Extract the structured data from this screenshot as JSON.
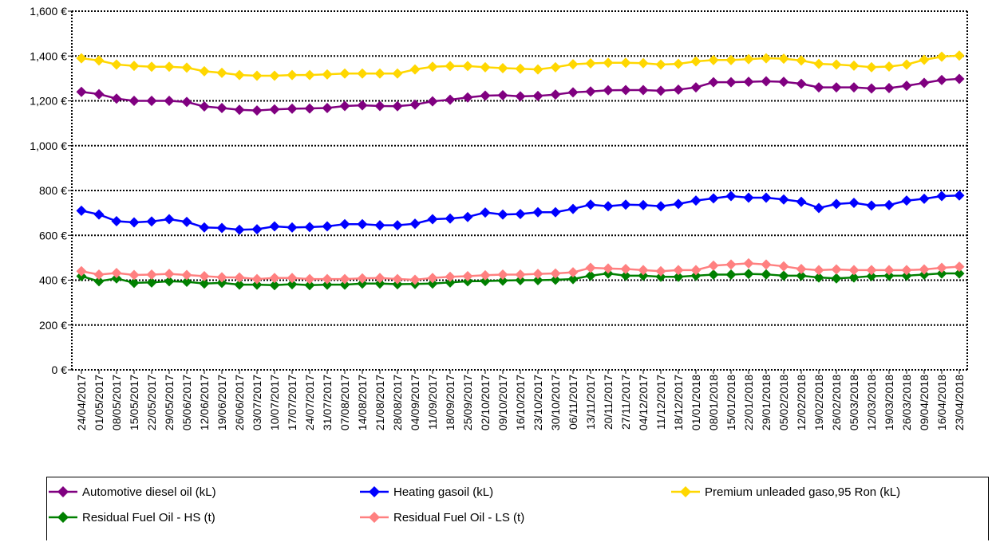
{
  "chart_data": {
    "type": "line",
    "title": "",
    "xlabel": "",
    "ylabel": "",
    "ylim": [
      0,
      1600
    ],
    "yticks": [
      0,
      200,
      400,
      600,
      800,
      1000,
      1200,
      1400,
      1600
    ],
    "ytick_labels": [
      "0 €",
      "200 €",
      "400 €",
      "600 €",
      "800 €",
      "1,000 €",
      "1,200 €",
      "1,400 €",
      "1,600 €"
    ],
    "grid": "horizontal dotted",
    "legend_position": "bottom",
    "categories": [
      "24/04/2017",
      "01/05/2017",
      "08/05/2017",
      "15/05/2017",
      "22/05/2017",
      "29/05/2017",
      "05/06/2017",
      "12/06/2017",
      "19/06/2017",
      "26/06/2017",
      "03/07/2017",
      "10/07/2017",
      "17/07/2017",
      "24/07/2017",
      "31/07/2017",
      "07/08/2017",
      "14/08/2017",
      "21/08/2017",
      "28/08/2017",
      "04/09/2017",
      "11/09/2017",
      "18/09/2017",
      "25/09/2017",
      "02/10/2017",
      "09/10/2017",
      "16/10/2017",
      "23/10/2017",
      "30/10/2017",
      "06/11/2017",
      "13/11/2017",
      "20/11/2017",
      "27/11/2017",
      "04/12/2017",
      "11/12/2017",
      "18/12/2017",
      "01/01/2018",
      "08/01/2018",
      "15/01/2018",
      "22/01/2018",
      "29/01/2018",
      "05/02/2018",
      "12/02/2018",
      "19/02/2018",
      "26/02/2018",
      "05/03/2018",
      "12/03/2018",
      "19/03/2018",
      "26/03/2018",
      "09/04/2018",
      "16/04/2018",
      "23/04/2018"
    ],
    "series": [
      {
        "name": "Automotive diesel oil (kL)",
        "color": "#800080",
        "values": [
          1240,
          1230,
          1210,
          1200,
          1200,
          1200,
          1195,
          1175,
          1168,
          1160,
          1157,
          1162,
          1165,
          1166,
          1168,
          1177,
          1180,
          1177,
          1176,
          1183,
          1198,
          1205,
          1215,
          1223,
          1225,
          1220,
          1222,
          1228,
          1238,
          1242,
          1247,
          1248,
          1248,
          1245,
          1250,
          1260,
          1283,
          1283,
          1285,
          1287,
          1285,
          1276,
          1260,
          1260,
          1260,
          1255,
          1257,
          1267,
          1280,
          1293,
          1298
        ]
      },
      {
        "name": "Heating gasoil (kL)",
        "color": "#0000ff",
        "values": [
          710,
          693,
          663,
          658,
          662,
          672,
          660,
          635,
          633,
          625,
          627,
          640,
          635,
          637,
          640,
          650,
          650,
          645,
          645,
          652,
          672,
          675,
          682,
          702,
          693,
          695,
          703,
          703,
          718,
          737,
          730,
          737,
          735,
          730,
          740,
          755,
          765,
          775,
          768,
          768,
          760,
          750,
          722,
          740,
          745,
          733,
          735,
          755,
          763,
          775,
          778
        ]
      },
      {
        "name": "Premium unleaded gaso,95 Ron (kL)",
        "color": "#ffd700",
        "values": [
          1390,
          1380,
          1362,
          1356,
          1352,
          1352,
          1348,
          1332,
          1325,
          1315,
          1312,
          1312,
          1315,
          1315,
          1318,
          1322,
          1322,
          1322,
          1322,
          1340,
          1352,
          1355,
          1355,
          1350,
          1346,
          1343,
          1340,
          1350,
          1363,
          1367,
          1370,
          1370,
          1368,
          1362,
          1365,
          1376,
          1382,
          1382,
          1386,
          1390,
          1388,
          1380,
          1365,
          1362,
          1357,
          1350,
          1353,
          1362,
          1383,
          1397,
          1402
        ]
      },
      {
        "name": "Residual Fuel Oil - HS (t)",
        "color": "#008000",
        "values": [
          418,
          395,
          408,
          388,
          390,
          395,
          393,
          385,
          388,
          380,
          380,
          378,
          382,
          378,
          380,
          380,
          385,
          385,
          382,
          383,
          385,
          390,
          395,
          396,
          398,
          400,
          400,
          402,
          405,
          420,
          430,
          420,
          420,
          415,
          415,
          420,
          425,
          425,
          428,
          426,
          420,
          420,
          412,
          408,
          412,
          418,
          420,
          420,
          425,
          430,
          430
        ]
      },
      {
        "name": "Residual Fuel Oil - LS (t)",
        "color": "#ff8080",
        "values": [
          440,
          425,
          432,
          423,
          425,
          428,
          423,
          418,
          413,
          412,
          405,
          410,
          410,
          405,
          405,
          405,
          408,
          410,
          405,
          402,
          410,
          415,
          418,
          422,
          425,
          425,
          428,
          430,
          435,
          455,
          452,
          450,
          445,
          440,
          445,
          445,
          465,
          470,
          475,
          470,
          462,
          450,
          445,
          448,
          445,
          445,
          445,
          445,
          448,
          455,
          460
        ]
      }
    ]
  }
}
